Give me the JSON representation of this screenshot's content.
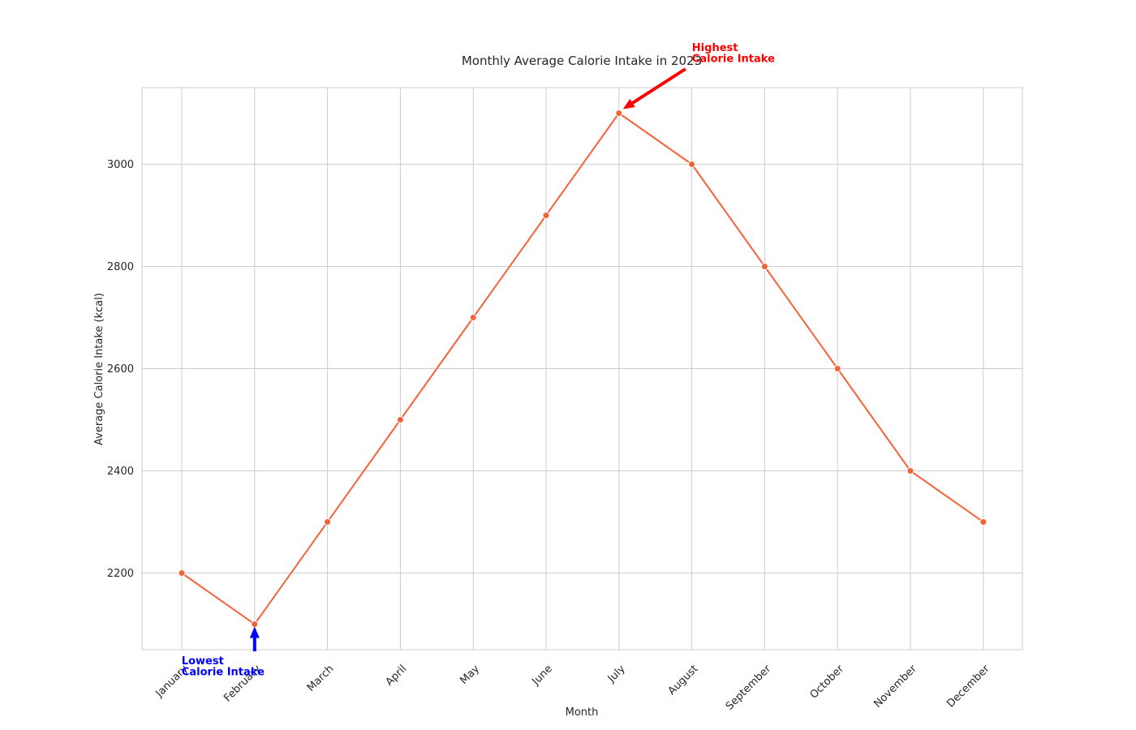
{
  "chart_data": {
    "type": "line",
    "title": "Monthly Average Calorie Intake in 2023",
    "xlabel": "Month",
    "ylabel": "Average Calorie Intake (kcal)",
    "categories": [
      "January",
      "February",
      "March",
      "April",
      "May",
      "June",
      "July",
      "August",
      "September",
      "October",
      "November",
      "December"
    ],
    "series": [
      {
        "values": [
          2200,
          2100,
          2300,
          2500,
          2700,
          2900,
          3100,
          3000,
          2800,
          2600,
          2400,
          2300
        ],
        "color": "#f4623a"
      }
    ],
    "ylim": [
      2050,
      3150
    ],
    "yticks": [
      2200,
      2400,
      2600,
      2800,
      3000
    ],
    "grid": true,
    "annotations": [
      {
        "line1": "Highest",
        "line2": "Calorie Intake",
        "category": "July",
        "value": 3100,
        "color": "#ff0000"
      },
      {
        "line1": "Lowest",
        "line2": "Calorie Intake",
        "category": "February",
        "value": 2100,
        "color": "#0000ff"
      }
    ]
  }
}
